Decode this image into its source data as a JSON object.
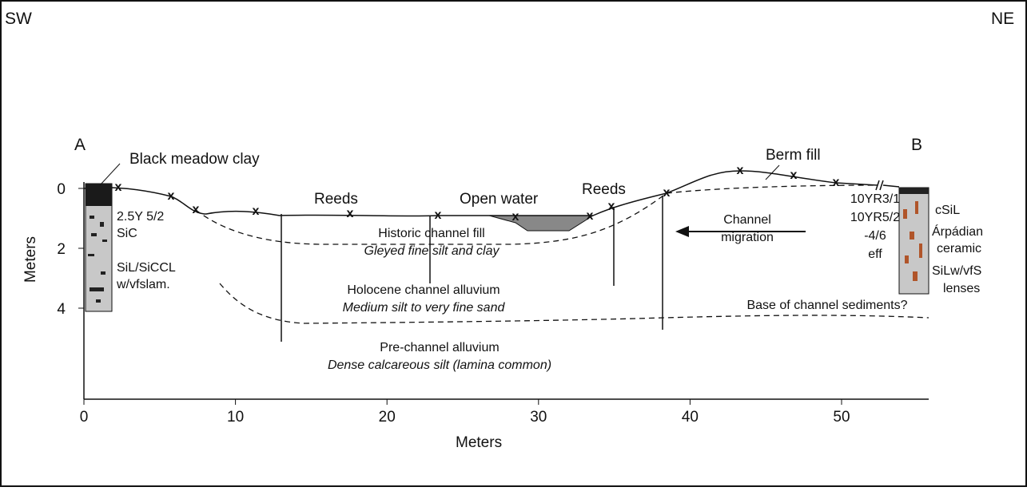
{
  "header": {
    "left": "SW",
    "right": "NE"
  },
  "section": {
    "start": "A",
    "end": "B"
  },
  "labels": {
    "black_meadow_clay": "Black meadow clay",
    "reeds_left": "Reeds",
    "open_water": "Open water",
    "reeds_right": "Reeds",
    "berm_fill": "Berm fill",
    "historic_fill": "Historic channel fill",
    "historic_fill_desc": "Gleyed fine silt and clay",
    "holocene": "Holocene channel alluvium",
    "holocene_desc": "Medium silt to very fine sand",
    "base": "Base of channel sediments?",
    "pre_channel": "Pre-channel alluvium",
    "pre_channel_desc": "Dense calcareous silt (lamina common)",
    "migration": [
      "Channel",
      "migration"
    ]
  },
  "core_a": [
    "2.5Y 5/2",
    "SiC",
    "SiL/SiCCL",
    "w/vfslam."
  ],
  "core_b_colors": [
    "10YR3/1",
    "10YR5/2",
    "-4/6",
    "eff"
  ],
  "core_b_texture": [
    "cSiL",
    "Árpádian",
    "ceramic",
    "SiLw/vfS",
    "lenses"
  ],
  "x_axis": {
    "title": "Meters",
    "ticks": [
      0,
      10,
      20,
      30,
      40,
      50
    ]
  },
  "y_axis": {
    "title": "Meters",
    "ticks": [
      0,
      2,
      4
    ]
  }
}
